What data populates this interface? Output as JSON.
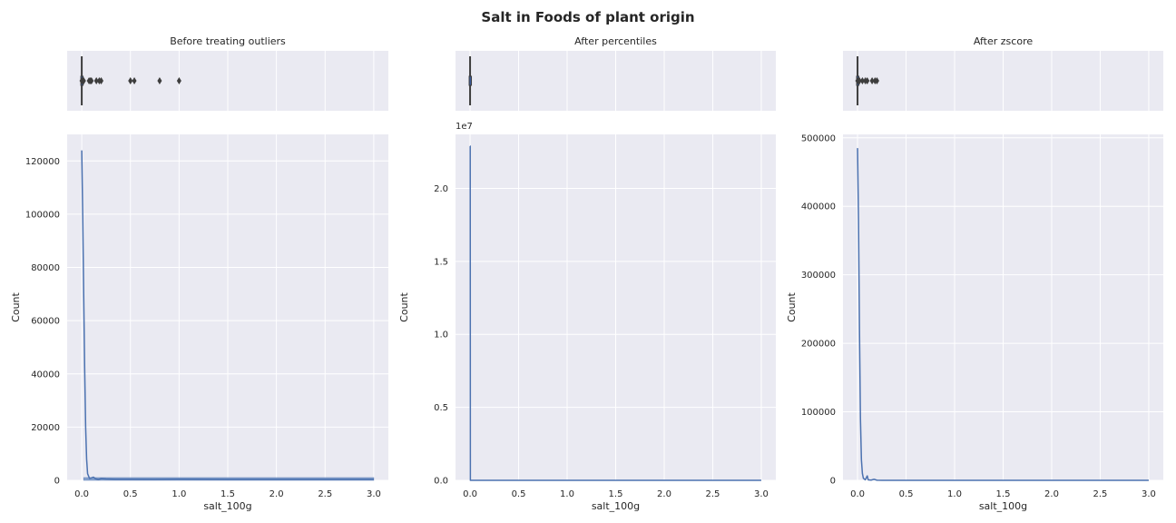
{
  "title": "Salt in Foods of plant origin",
  "chart_data": [
    {
      "type": "histogram",
      "title": "Before treating outliers",
      "xlabel": "salt_100g",
      "ylabel": "Count",
      "xlim": [
        -0.15,
        3.15
      ],
      "ylim": [
        0,
        130000
      ],
      "x_ticks": [
        0.0,
        0.5,
        1.0,
        1.5,
        2.0,
        2.5,
        3.0
      ],
      "y_ticks": [
        0,
        20000,
        40000,
        60000,
        80000,
        100000,
        120000
      ],
      "y_offset_text": "",
      "kde": [
        [
          0.0,
          124000
        ],
        [
          0.01,
          100000
        ],
        [
          0.02,
          70000
        ],
        [
          0.03,
          42000
        ],
        [
          0.04,
          20000
        ],
        [
          0.05,
          8000
        ],
        [
          0.06,
          2500
        ],
        [
          0.08,
          700
        ],
        [
          0.1,
          900
        ],
        [
          0.12,
          1200
        ],
        [
          0.14,
          600
        ],
        [
          0.17,
          300
        ],
        [
          0.2,
          650
        ],
        [
          0.25,
          500
        ],
        [
          0.35,
          400
        ],
        [
          0.5,
          380
        ],
        [
          0.75,
          350
        ],
        [
          1.0,
          420
        ],
        [
          1.5,
          340
        ],
        [
          2.0,
          330
        ],
        [
          2.5,
          330
        ],
        [
          3.0,
          330
        ]
      ],
      "hist_band": [
        0.02,
        3.0
      ],
      "box": {
        "whisker_low": 0.0,
        "q1": 0.0,
        "median": 0.0,
        "q3": 0.005,
        "whisker_high": 0.01,
        "outliers": [
          0.0,
          0.01,
          0.02,
          0.075,
          0.09,
          0.1,
          0.15,
          0.18,
          0.2,
          0.5,
          0.54,
          0.8,
          1.0
        ]
      }
    },
    {
      "type": "histogram",
      "title": "After percentiles",
      "xlabel": "salt_100g",
      "ylabel": "Count",
      "xlim": [
        -0.15,
        3.15
      ],
      "ylim": [
        0,
        23700000
      ],
      "x_ticks": [
        0.0,
        0.5,
        1.0,
        1.5,
        2.0,
        2.5,
        3.0
      ],
      "y_ticks": [
        0,
        5000000,
        10000000,
        15000000,
        20000000
      ],
      "y_tick_labels": [
        "0.0",
        "0.5",
        "1.0",
        "1.5",
        "2.0"
      ],
      "y_offset_text": "1e7",
      "kde": [
        [
          0.0,
          22900000
        ],
        [
          0.0015,
          22900000
        ],
        [
          0.003,
          0
        ],
        [
          3.0,
          0
        ]
      ],
      "hist_band": null,
      "box": {
        "whisker_low": 0.0,
        "q1": 0.0,
        "median": 0.0,
        "q3": 0.0,
        "whisker_high": 0.0,
        "outliers": []
      }
    },
    {
      "type": "histogram",
      "title": "After zscore",
      "xlabel": "salt_100g",
      "ylabel": "Count",
      "xlim": [
        -0.15,
        3.15
      ],
      "ylim": [
        0,
        505000
      ],
      "x_ticks": [
        0.0,
        0.5,
        1.0,
        1.5,
        2.0,
        2.5,
        3.0
      ],
      "y_ticks": [
        0,
        100000,
        200000,
        300000,
        400000,
        500000
      ],
      "y_offset_text": "",
      "kde": [
        [
          0.0,
          485000
        ],
        [
          0.01,
          380000
        ],
        [
          0.02,
          220000
        ],
        [
          0.03,
          90000
        ],
        [
          0.04,
          30000
        ],
        [
          0.05,
          10000
        ],
        [
          0.06,
          3000
        ],
        [
          0.08,
          800
        ],
        [
          0.1,
          6500
        ],
        [
          0.11,
          600
        ],
        [
          0.14,
          300
        ],
        [
          0.17,
          1500
        ],
        [
          0.2,
          200
        ],
        [
          0.25,
          50
        ],
        [
          3.0,
          0
        ]
      ],
      "hist_band": null,
      "box": {
        "whisker_low": 0.0,
        "q1": 0.0,
        "median": 0.0,
        "q3": 0.003,
        "whisker_high": 0.008,
        "outliers": [
          0.0,
          0.01,
          0.02,
          0.05,
          0.08,
          0.1,
          0.15,
          0.18,
          0.2
        ]
      }
    }
  ]
}
